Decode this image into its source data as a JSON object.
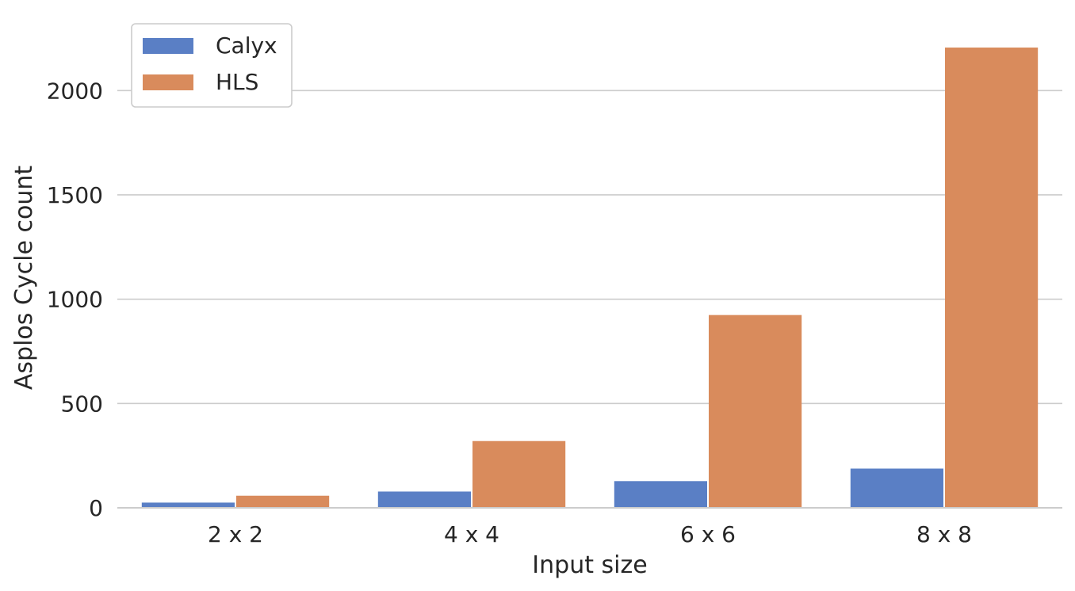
{
  "chart_data": {
    "type": "bar",
    "categories": [
      "2 x 2",
      "4 x 4",
      "6 x 6",
      "8 x 8"
    ],
    "series": [
      {
        "name": "Calyx",
        "values": [
          25,
          78,
          128,
          188
        ],
        "color": "#5a7fc5"
      },
      {
        "name": "HLS",
        "values": [
          58,
          320,
          924,
          2206
        ],
        "color": "#d98b5c"
      }
    ],
    "xlabel": "Input size",
    "ylabel": "Asplos Cycle count",
    "ylim": [
      0,
      2320
    ],
    "yticks": [
      0,
      500,
      1000,
      1500,
      2000
    ],
    "grid": "horizontal",
    "legend_position": "top-left"
  }
}
